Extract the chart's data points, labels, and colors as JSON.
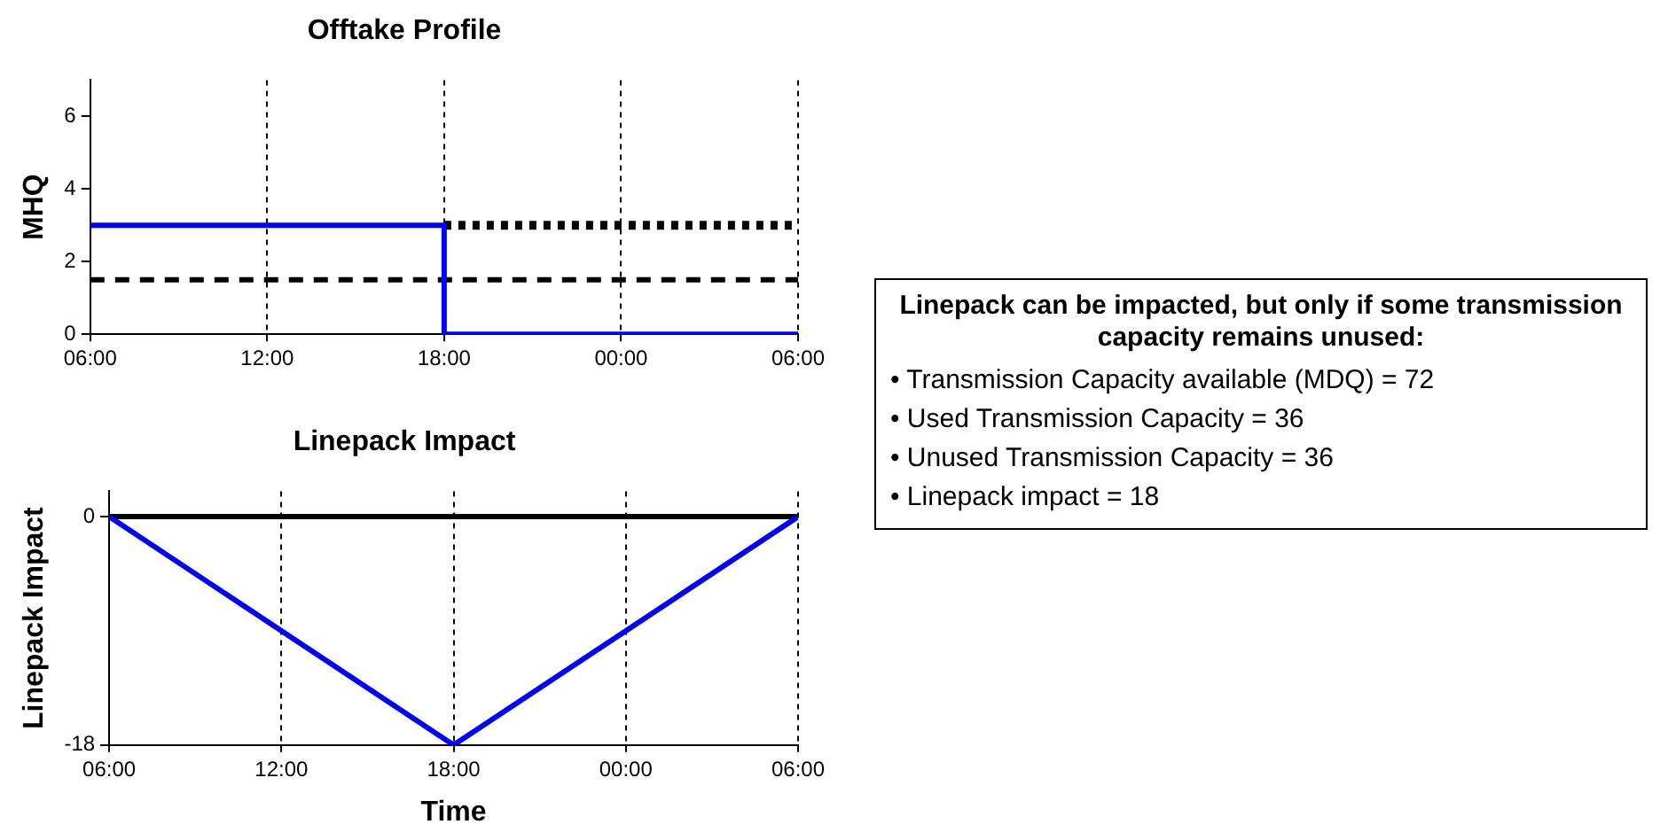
{
  "chart_data": [
    {
      "type": "line",
      "title": "Offtake Profile",
      "ylabel": "MHQ",
      "xlim": [
        "2000-01-01T06:00",
        "2000-01-02T06:00"
      ],
      "xticks": [
        {
          "value": "2000-01-01T06:00",
          "label": "06:00"
        },
        {
          "value": "2000-01-01T12:00",
          "label": "12:00"
        },
        {
          "value": "2000-01-01T18:00",
          "label": "18:00"
        },
        {
          "value": "2000-01-02T00:00",
          "label": "00:00"
        },
        {
          "value": "2000-01-02T06:00",
          "label": "06:00"
        }
      ],
      "ylim": [
        0,
        7
      ],
      "yticks": [
        0,
        2,
        4,
        6
      ],
      "grid": "x",
      "legend": false,
      "marker": "none",
      "series": [
        {
          "color": "#0000ff",
          "x": [
            "2000-01-01T06:00",
            "2000-01-01T18:00",
            "2000-01-01T18:00",
            "2000-01-02T06:00"
          ],
          "values": [
            3,
            3,
            0,
            0
          ],
          "line_style": "solid"
        },
        {
          "color": "#000000",
          "x": [
            "2000-01-01T18:00",
            "2000-01-02T06:00"
          ],
          "values": [
            3,
            3
          ],
          "line_style": "dotted"
        }
      ],
      "ref_lines": [
        {
          "axis": "y",
          "value": 1.5,
          "color": "#000000",
          "line_style": "dashed"
        }
      ]
    },
    {
      "type": "line",
      "title": "Linepack Impact",
      "xlabel": "Time",
      "ylabel": "Linepack Impact",
      "xlim": [
        "2000-01-01T06:00",
        "2000-01-02T06:00"
      ],
      "xticks": [
        {
          "value": "2000-01-01T06:00",
          "label": "06:00"
        },
        {
          "value": "2000-01-01T12:00",
          "label": "12:00"
        },
        {
          "value": "2000-01-01T18:00",
          "label": "18:00"
        },
        {
          "value": "2000-01-02T00:00",
          "label": "00:00"
        },
        {
          "value": "2000-01-02T06:00",
          "label": "06:00"
        }
      ],
      "ylim": [
        -18,
        2
      ],
      "yticks": [
        -18,
        0
      ],
      "grid": "x",
      "legend": false,
      "marker": "none",
      "series": [
        {
          "color": "#0000ff",
          "x": [
            "2000-01-01T06:00",
            "2000-01-01T18:00",
            "2000-01-02T06:00"
          ],
          "values": [
            0,
            -18,
            0
          ],
          "line_style": "solid"
        }
      ],
      "ref_lines": [
        {
          "axis": "y",
          "value": 0,
          "color": "#000000",
          "line_style": "solid"
        }
      ]
    },
    {
      "type": "other",
      "title": "Linepack can be impacted, but only if some transmission capacity remains unused:",
      "annotations": [
        "• Transmission Capacity available (MDQ) = 72",
        "• Used Transmission Capacity = 36",
        "• Unused Transmission Capacity = 36",
        "• Linepack impact = 18"
      ]
    }
  ]
}
